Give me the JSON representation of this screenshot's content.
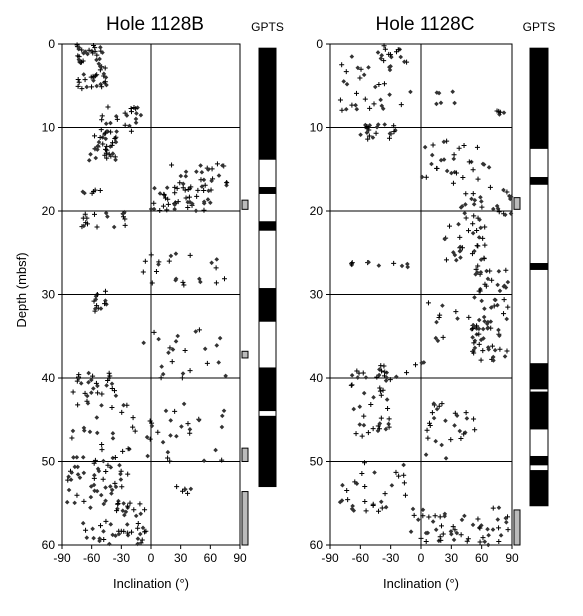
{
  "figure": {
    "ylabel": "Depth (mbsf)",
    "y_ticks": [
      0,
      10,
      20,
      30,
      40,
      50,
      60
    ],
    "x_ticks": [
      -90,
      -60,
      -30,
      0,
      30,
      60,
      90
    ],
    "gpts_label": "GPTS",
    "colors": {
      "normal_polarity": "#000000",
      "reversed_polarity": "#ffffff",
      "uncertain_polarity": "#bbbbbb"
    }
  },
  "chart_data": [
    {
      "type": "scatter",
      "title": "Hole 1128B",
      "xlabel": "Inclination (°)",
      "ylabel": "Depth (mbsf)",
      "xlim": [
        -90,
        90
      ],
      "ylim": [
        0,
        60
      ],
      "y_inverted": true,
      "grid": true,
      "note": "Depth reversed axis; marker types: + and filled diamond",
      "clusters": [
        {
          "depth": [
            0,
            5.5
          ],
          "incl": [
            -75,
            -45
          ],
          "n": 55
        },
        {
          "depth": [
            7.5,
            10.5
          ],
          "incl": [
            -55,
            -10
          ],
          "n": 25
        },
        {
          "depth": [
            10.5,
            14
          ],
          "incl": [
            -65,
            -35
          ],
          "n": 35
        },
        {
          "depth": [
            14,
            17.5
          ],
          "incl": [
            15,
            80
          ],
          "n": 30
        },
        {
          "depth": [
            17,
            20
          ],
          "incl": [
            0,
            60
          ],
          "n": 40
        },
        {
          "depth": [
            17.5,
            18
          ],
          "incl": [
            -70,
            -50
          ],
          "n": 6
        },
        {
          "depth": [
            20,
            22
          ],
          "incl": [
            -70,
            -25
          ],
          "n": 18
        },
        {
          "depth": [
            24.5,
            29
          ],
          "incl": [
            -10,
            75
          ],
          "n": 22
        },
        {
          "depth": [
            29.5,
            32
          ],
          "incl": [
            -60,
            -45
          ],
          "n": 14
        },
        {
          "depth": [
            34,
            40
          ],
          "incl": [
            -10,
            80
          ],
          "n": 24
        },
        {
          "depth": [
            39,
            43
          ],
          "incl": [
            -80,
            -35
          ],
          "n": 28
        },
        {
          "depth": [
            43,
            50
          ],
          "incl": [
            -85,
            75
          ],
          "n": 60
        },
        {
          "depth": [
            50,
            55
          ],
          "incl": [
            -85,
            -20
          ],
          "n": 45
        },
        {
          "depth": [
            53,
            54
          ],
          "incl": [
            25,
            45
          ],
          "n": 6
        },
        {
          "depth": [
            55,
            60
          ],
          "incl": [
            -70,
            -5
          ],
          "n": 50
        }
      ],
      "gpts_intervals": [
        {
          "top": 0.5,
          "bottom": 13.8,
          "polarity": "normal"
        },
        {
          "top": 13.8,
          "bottom": 17.2,
          "polarity": "reversed"
        },
        {
          "top": 17.2,
          "bottom": 17.9,
          "polarity": "normal"
        },
        {
          "top": 17.9,
          "bottom": 21.3,
          "polarity": "reversed"
        },
        {
          "top": 21.3,
          "bottom": 22.3,
          "polarity": "normal"
        },
        {
          "top": 22.3,
          "bottom": 29.3,
          "polarity": "reversed"
        },
        {
          "top": 29.3,
          "bottom": 33.2,
          "polarity": "normal"
        },
        {
          "top": 33.2,
          "bottom": 38.8,
          "polarity": "reversed"
        },
        {
          "top": 38.8,
          "bottom": 43.9,
          "polarity": "normal"
        },
        {
          "top": 43.9,
          "bottom": 44.6,
          "polarity": "reversed"
        },
        {
          "top": 44.6,
          "bottom": 53.0,
          "polarity": "normal"
        }
      ],
      "uncertain_markers": [
        {
          "top": 18.7,
          "bottom": 19.8
        },
        {
          "top": 36.8,
          "bottom": 37.6
        },
        {
          "top": 48.4,
          "bottom": 50.0
        },
        {
          "top": 53.6,
          "bottom": 60.0
        }
      ]
    },
    {
      "type": "scatter",
      "title": "Hole 1128C",
      "xlabel": "Inclination (°)",
      "xlim": [
        -90,
        90
      ],
      "ylim": [
        0,
        60
      ],
      "y_inverted": true,
      "grid": true,
      "clusters": [
        {
          "depth": [
            0,
            2
          ],
          "incl": [
            -45,
            -20
          ],
          "n": 12
        },
        {
          "depth": [
            1.5,
            8
          ],
          "incl": [
            -80,
            -10
          ],
          "n": 35
        },
        {
          "depth": [
            4.5,
            7.5
          ],
          "incl": [
            15,
            35
          ],
          "n": 6
        },
        {
          "depth": [
            8,
            9
          ],
          "incl": [
            75,
            85
          ],
          "n": 5
        },
        {
          "depth": [
            9.5,
            11.5
          ],
          "incl": [
            -60,
            -25
          ],
          "n": 20
        },
        {
          "depth": [
            11.5,
            17
          ],
          "incl": [
            0,
            75
          ],
          "n": 30
        },
        {
          "depth": [
            17,
            20.5
          ],
          "incl": [
            35,
            90
          ],
          "n": 25
        },
        {
          "depth": [
            20.5,
            26
          ],
          "incl": [
            20,
            70
          ],
          "n": 35
        },
        {
          "depth": [
            26,
            27
          ],
          "incl": [
            -70,
            -10
          ],
          "n": 10
        },
        {
          "depth": [
            26.5,
            38
          ],
          "incl": [
            50,
            90
          ],
          "n": 80
        },
        {
          "depth": [
            31,
            36
          ],
          "incl": [
            0,
            55
          ],
          "n": 12
        },
        {
          "depth": [
            38,
            40
          ],
          "incl": [
            -50,
            10
          ],
          "n": 12
        },
        {
          "depth": [
            39,
            47
          ],
          "incl": [
            -70,
            -30
          ],
          "n": 40
        },
        {
          "depth": [
            43,
            50
          ],
          "incl": [
            0,
            55
          ],
          "n": 28
        },
        {
          "depth": [
            50,
            56
          ],
          "incl": [
            -80,
            -15
          ],
          "n": 30
        },
        {
          "depth": [
            55.5,
            60
          ],
          "incl": [
            -10,
            90
          ],
          "n": 55
        }
      ],
      "gpts_intervals": [
        {
          "top": 0.5,
          "bottom": 12.5,
          "polarity": "normal"
        },
        {
          "top": 12.5,
          "bottom": 16.0,
          "polarity": "reversed"
        },
        {
          "top": 16.0,
          "bottom": 16.8,
          "polarity": "normal"
        },
        {
          "top": 16.8,
          "bottom": 26.3,
          "polarity": "reversed"
        },
        {
          "top": 26.3,
          "bottom": 27.0,
          "polarity": "normal"
        },
        {
          "top": 27.0,
          "bottom": 38.3,
          "polarity": "reversed"
        },
        {
          "top": 38.3,
          "bottom": 41.3,
          "polarity": "normal"
        },
        {
          "top": 41.3,
          "bottom": 41.7,
          "polarity": "reversed"
        },
        {
          "top": 41.7,
          "bottom": 46.1,
          "polarity": "normal"
        },
        {
          "top": 46.1,
          "bottom": 49.4,
          "polarity": "reversed"
        },
        {
          "top": 49.4,
          "bottom": 50.4,
          "polarity": "normal"
        },
        {
          "top": 50.4,
          "bottom": 51.1,
          "polarity": "reversed"
        },
        {
          "top": 51.1,
          "bottom": 55.3,
          "polarity": "normal"
        }
      ],
      "uncertain_markers": [
        {
          "top": 18.4,
          "bottom": 19.8
        },
        {
          "top": 55.8,
          "bottom": 60.0
        }
      ]
    }
  ]
}
